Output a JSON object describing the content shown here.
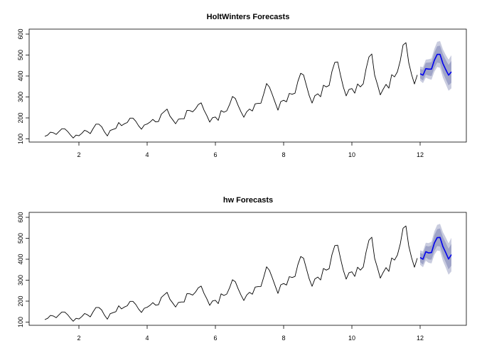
{
  "chart_data": [
    {
      "type": "line",
      "title": "HoltWinters Forecasts",
      "xlabel": "",
      "ylabel": "",
      "xlim": [
        1,
        13
      ],
      "ylim": [
        100,
        620
      ],
      "x_ticks": [
        2,
        4,
        6,
        8,
        10,
        12
      ],
      "y_ticks": [
        100,
        200,
        300,
        400,
        500,
        600
      ],
      "grid": false,
      "series": [
        {
          "role": "observed",
          "color": "#000000",
          "x_start": 1,
          "frequency": 12,
          "values": [
            112,
            118,
            132,
            129,
            121,
            135,
            148,
            148,
            136,
            119,
            104,
            118,
            115,
            126,
            141,
            135,
            125,
            149,
            170,
            170,
            158,
            133,
            114,
            140,
            145,
            150,
            178,
            163,
            172,
            178,
            199,
            199,
            184,
            162,
            146,
            166,
            171,
            180,
            193,
            181,
            183,
            218,
            230,
            242,
            209,
            191,
            172,
            194,
            196,
            196,
            236,
            235,
            229,
            243,
            264,
            272,
            237,
            211,
            180,
            201,
            204,
            188,
            235,
            227,
            234,
            264,
            302,
            293,
            259,
            229,
            203,
            229,
            242,
            233,
            267,
            269,
            270,
            315,
            364,
            347,
            312,
            274,
            237,
            278,
            284,
            277,
            317,
            313,
            318,
            374,
            413,
            405,
            355,
            306,
            271,
            306,
            315,
            301,
            356,
            348,
            355,
            422,
            465,
            467,
            404,
            347,
            305,
            336,
            340,
            318,
            362,
            348,
            363,
            435,
            491,
            505,
            404,
            359,
            310,
            337,
            360,
            342,
            406,
            396,
            420,
            472,
            548,
            559,
            463,
            407,
            362,
            405
          ]
        },
        {
          "role": "forecast",
          "color": "#0000ee",
          "x_start": 12,
          "frequency": 12,
          "values": [
            411,
            404,
            435,
            433,
            433,
            475,
            503,
            503,
            460,
            431,
            404,
            420
          ],
          "lo80": [
            389,
            379,
            407,
            402,
            400,
            439,
            464,
            461,
            416,
            385,
            355,
            368
          ],
          "hi80": [
            433,
            429,
            463,
            464,
            466,
            511,
            542,
            545,
            504,
            477,
            453,
            472
          ],
          "lo95": [
            377,
            366,
            392,
            386,
            382,
            420,
            443,
            439,
            392,
            361,
            330,
            341
          ],
          "hi95": [
            445,
            442,
            478,
            480,
            484,
            530,
            563,
            567,
            528,
            501,
            478,
            499
          ],
          "band80_color": "#9fa4c8",
          "band95_color": "#c9ccdf"
        }
      ]
    },
    {
      "type": "line",
      "title": "hw Forecasts",
      "xlabel": "",
      "ylabel": "",
      "xlim": [
        1,
        13
      ],
      "ylim": [
        100,
        620
      ],
      "x_ticks": [
        2,
        4,
        6,
        8,
        10,
        12
      ],
      "y_ticks": [
        100,
        200,
        300,
        400,
        500,
        600
      ],
      "grid": false,
      "series": [
        {
          "role": "observed",
          "color": "#000000",
          "x_start": 1,
          "frequency": 12,
          "values": [
            112,
            118,
            132,
            129,
            121,
            135,
            148,
            148,
            136,
            119,
            104,
            118,
            115,
            126,
            141,
            135,
            125,
            149,
            170,
            170,
            158,
            133,
            114,
            140,
            145,
            150,
            178,
            163,
            172,
            178,
            199,
            199,
            184,
            162,
            146,
            166,
            171,
            180,
            193,
            181,
            183,
            218,
            230,
            242,
            209,
            191,
            172,
            194,
            196,
            196,
            236,
            235,
            229,
            243,
            264,
            272,
            237,
            211,
            180,
            201,
            204,
            188,
            235,
            227,
            234,
            264,
            302,
            293,
            259,
            229,
            203,
            229,
            242,
            233,
            267,
            269,
            270,
            315,
            364,
            347,
            312,
            274,
            237,
            278,
            284,
            277,
            317,
            313,
            318,
            374,
            413,
            405,
            355,
            306,
            271,
            306,
            315,
            301,
            356,
            348,
            355,
            422,
            465,
            467,
            404,
            347,
            305,
            336,
            340,
            318,
            362,
            348,
            363,
            435,
            491,
            505,
            404,
            359,
            310,
            337,
            360,
            342,
            406,
            396,
            420,
            472,
            548,
            559,
            463,
            407,
            362,
            405
          ]
        },
        {
          "role": "forecast",
          "color": "#0000ee",
          "x_start": 12,
          "frequency": 12,
          "values": [
            408,
            400,
            436,
            430,
            432,
            477,
            503,
            504,
            461,
            432,
            401,
            422
          ],
          "lo80": [
            386,
            375,
            408,
            399,
            398,
            440,
            463,
            461,
            416,
            385,
            352,
            370
          ],
          "hi80": [
            430,
            425,
            464,
            461,
            466,
            514,
            543,
            547,
            506,
            479,
            450,
            474
          ],
          "lo95": [
            374,
            362,
            393,
            383,
            380,
            421,
            442,
            439,
            392,
            360,
            326,
            342
          ],
          "hi95": [
            442,
            438,
            479,
            477,
            484,
            533,
            564,
            569,
            530,
            504,
            476,
            502
          ],
          "band80_color": "#9fa4c8",
          "band95_color": "#c9ccdf"
        }
      ]
    }
  ]
}
